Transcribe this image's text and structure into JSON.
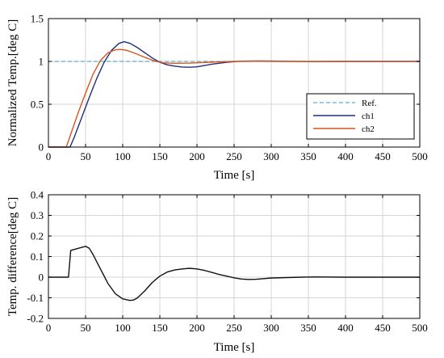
{
  "chart_data": [
    {
      "type": "line",
      "xlabel": "Time [s]",
      "ylabel": "Normalized Temp.[deg C]",
      "xlim": [
        0,
        500
      ],
      "ylim": [
        0,
        1.5
      ],
      "xticks": [
        0,
        50,
        100,
        150,
        200,
        250,
        300,
        350,
        400,
        450,
        500
      ],
      "yticks": [
        0,
        0.5,
        1,
        1.5
      ],
      "ytick_labels": [
        "0",
        "0.5",
        "1",
        "1.5"
      ],
      "grid": true,
      "legend": {
        "position": "center-right"
      },
      "series": [
        {
          "name": "Ref.",
          "color": "#3a98c4",
          "style": "dashed",
          "x": [
            0,
            500
          ],
          "y": [
            1,
            1
          ]
        },
        {
          "name": "ch1",
          "color": "#1f2f7a",
          "style": "solid",
          "x": [
            0,
            29,
            35,
            45,
            55,
            65,
            75,
            85,
            95,
            102,
            110,
            120,
            130,
            140,
            150,
            160,
            170,
            180,
            190,
            200,
            210,
            220,
            240,
            260,
            280,
            300,
            350,
            400,
            500
          ],
          "y": [
            0,
            0,
            0.12,
            0.35,
            0.58,
            0.8,
            0.99,
            1.13,
            1.21,
            1.23,
            1.21,
            1.16,
            1.1,
            1.04,
            0.99,
            0.96,
            0.945,
            0.935,
            0.932,
            0.937,
            0.952,
            0.968,
            0.99,
            1.003,
            1.006,
            1.004,
            0.998,
            1.0,
            1.0
          ]
        },
        {
          "name": "ch2",
          "color": "#d9541e",
          "style": "solid",
          "x": [
            0,
            24,
            30,
            40,
            50,
            60,
            70,
            80,
            90,
            97,
            105,
            115,
            125,
            135,
            145,
            155,
            170,
            190,
            210,
            230,
            250,
            280,
            320,
            400,
            500
          ],
          "y": [
            0,
            0,
            0.15,
            0.4,
            0.63,
            0.85,
            1.01,
            1.1,
            1.135,
            1.14,
            1.13,
            1.1,
            1.065,
            1.03,
            1.0,
            0.983,
            0.978,
            0.98,
            0.988,
            0.995,
            1.0,
            1.002,
            1.0,
            1.0,
            1.0
          ]
        }
      ]
    },
    {
      "type": "line",
      "xlabel": "Time [s]",
      "ylabel": "Temp. difference[deg C]",
      "xlim": [
        0,
        500
      ],
      "ylim": [
        -0.2,
        0.4
      ],
      "xticks": [
        0,
        50,
        100,
        150,
        200,
        250,
        300,
        350,
        400,
        450,
        500
      ],
      "yticks": [
        -0.2,
        -0.1,
        0,
        0.1,
        0.2,
        0.3,
        0.4
      ],
      "ytick_labels": [
        "-0.2",
        "-0.1",
        "0",
        "0.1",
        "0.2",
        "0.3",
        "0.4"
      ],
      "grid": true,
      "series": [
        {
          "color": "#111111",
          "style": "solid",
          "x": [
            0,
            24,
            27,
            30,
            40,
            50,
            55,
            60,
            70,
            80,
            90,
            100,
            110,
            115,
            120,
            130,
            140,
            150,
            160,
            170,
            180,
            190,
            200,
            210,
            220,
            230,
            240,
            250,
            260,
            270,
            280,
            290,
            300,
            320,
            340,
            360,
            400,
            450,
            500
          ],
          "y": [
            0,
            0,
            0,
            0.13,
            0.14,
            0.15,
            0.14,
            0.11,
            0.04,
            -0.03,
            -0.08,
            -0.105,
            -0.113,
            -0.11,
            -0.1,
            -0.065,
            -0.025,
            0.005,
            0.025,
            0.035,
            0.04,
            0.043,
            0.04,
            0.033,
            0.023,
            0.013,
            0.005,
            -0.003,
            -0.009,
            -0.011,
            -0.01,
            -0.007,
            -0.004,
            -0.002,
            0.0,
            0.001,
            0.0,
            0.0,
            0.0
          ]
        }
      ]
    }
  ]
}
